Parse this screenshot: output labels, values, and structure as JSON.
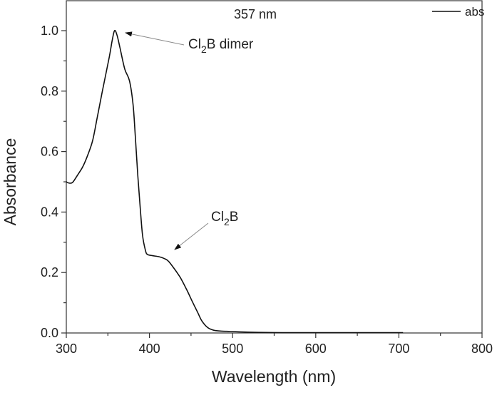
{
  "chart_data": {
    "type": "line",
    "title": "",
    "xlabel": "Wavelength (nm)",
    "ylabel": "Absorbance",
    "xlim": [
      300,
      800
    ],
    "ylim": [
      0,
      1.1
    ],
    "xticks": [
      300,
      400,
      500,
      600,
      700,
      800
    ],
    "yticks": [
      0.0,
      0.2,
      0.4,
      0.6,
      0.8,
      1.0
    ],
    "grid": false,
    "legend": {
      "position": "top-right",
      "entries": [
        "abs"
      ]
    },
    "series": [
      {
        "name": "abs",
        "color": "#111111",
        "x": [
          300,
          303,
          307.5,
          313,
          320,
          326,
          331.7,
          337,
          343,
          351.7,
          355,
          358,
          361,
          364.5,
          370.3,
          376,
          380.3,
          383,
          386,
          389,
          391.7,
          395,
          397.4,
          403,
          411.7,
          418,
          423,
          430,
          437.4,
          445,
          451.7,
          458,
          463,
          470,
          477.4,
          487,
          497.4,
          515,
          531,
          560,
          600,
          650,
          705
        ],
        "y": [
          0.5,
          0.496,
          0.498,
          0.52,
          0.551,
          0.59,
          0.637,
          0.71,
          0.795,
          0.913,
          0.965,
          1.0,
          0.985,
          0.944,
          0.873,
          0.834,
          0.755,
          0.65,
          0.52,
          0.41,
          0.323,
          0.275,
          0.26,
          0.256,
          0.252,
          0.246,
          0.237,
          0.212,
          0.182,
          0.142,
          0.103,
          0.068,
          0.04,
          0.018,
          0.009,
          0.006,
          0.005,
          0.003,
          0.002,
          0.001,
          0.001,
          0.001,
          0.001
        ]
      }
    ],
    "annotations": [
      {
        "text": "357 nm"
      },
      {
        "text_main": "Cl",
        "subscript": "2",
        "text_rest": "B dimer",
        "target_x": 357,
        "target_y": 1.0
      },
      {
        "text_main": "Cl",
        "subscript": "2",
        "text_rest": "B",
        "target_x": 420,
        "target_y": 0.25
      }
    ]
  }
}
